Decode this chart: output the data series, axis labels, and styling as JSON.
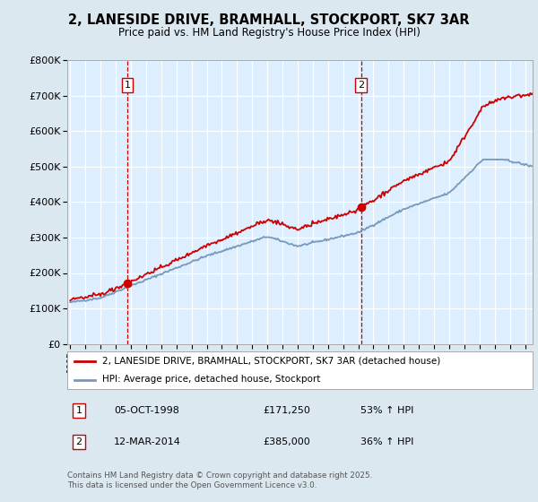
{
  "title": "2, LANESIDE DRIVE, BRAMHALL, STOCKPORT, SK7 3AR",
  "subtitle": "Price paid vs. HM Land Registry's House Price Index (HPI)",
  "bg_color": "#dce8f0",
  "plot_bg_color": "#ddeeff",
  "grid_color": "#ffffff",
  "sale1_date": 1998.76,
  "sale1_price": 171250,
  "sale2_date": 2014.19,
  "sale2_price": 385000,
  "legend_line1": "2, LANESIDE DRIVE, BRAMHALL, STOCKPORT, SK7 3AR (detached house)",
  "legend_line2": "HPI: Average price, detached house, Stockport",
  "footer": "Contains HM Land Registry data © Crown copyright and database right 2025.\nThis data is licensed under the Open Government Licence v3.0.",
  "ylim": [
    0,
    800000
  ],
  "xlim": [
    1994.8,
    2025.5
  ],
  "red_color": "#cc0000",
  "blue_color": "#7799bb",
  "marker_color": "#cc0000",
  "yticks": [
    0,
    100000,
    200000,
    300000,
    400000,
    500000,
    600000,
    700000,
    800000
  ],
  "ytick_labels": [
    "£0",
    "£100K",
    "£200K",
    "£300K",
    "£400K",
    "£500K",
    "£600K",
    "£700K",
    "£800K"
  ]
}
